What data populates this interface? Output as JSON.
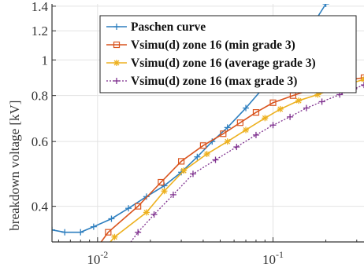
{
  "chart_data": {
    "type": "line",
    "title": "",
    "xlabel": "",
    "ylabel": "breakdown voltage [kV]",
    "xscale": "log",
    "yscale": "log",
    "xlim": [
      0.0055,
      0.33
    ],
    "ylim": [
      0.32,
      1.42
    ],
    "grid": true,
    "legend_position": "top-right",
    "x_ticks": [
      {
        "value": 0.01,
        "base": "10",
        "exp": "-2"
      },
      {
        "value": 0.1,
        "base": "10",
        "exp": "-1"
      }
    ],
    "y_ticks": [
      {
        "value": 0.4,
        "label": "0.4"
      },
      {
        "value": 0.6,
        "label": "0.6"
      },
      {
        "value": 0.8,
        "label": "0.8"
      },
      {
        "value": 1.0,
        "label": "1"
      },
      {
        "value": 1.2,
        "label": "1.2"
      },
      {
        "value": 1.4,
        "label": "1.4"
      }
    ],
    "series": [
      {
        "name": "Paschen curve",
        "color": "#2e7fbf",
        "marker": "plus",
        "dash": "",
        "points": [
          [
            0.0055,
            0.345
          ],
          [
            0.0065,
            0.34
          ],
          [
            0.008,
            0.34
          ],
          [
            0.0095,
            0.352
          ],
          [
            0.012,
            0.37
          ],
          [
            0.015,
            0.395
          ],
          [
            0.019,
            0.425
          ],
          [
            0.024,
            0.455
          ],
          [
            0.03,
            0.495
          ],
          [
            0.037,
            0.545
          ],
          [
            0.045,
            0.6
          ],
          [
            0.055,
            0.655
          ],
          [
            0.07,
            0.74
          ],
          [
            0.09,
            0.85
          ],
          [
            0.12,
            1.0
          ],
          [
            0.16,
            1.2
          ],
          [
            0.2,
            1.42
          ]
        ]
      },
      {
        "name": "Vsimu(d) zone 16 (min grade 3)",
        "color": "#d9541e",
        "marker": "square",
        "dash": "",
        "points": [
          [
            0.0095,
            0.3
          ],
          [
            0.0115,
            0.34
          ],
          [
            0.017,
            0.4
          ],
          [
            0.023,
            0.465
          ],
          [
            0.03,
            0.53
          ],
          [
            0.04,
            0.585
          ],
          [
            0.052,
            0.63
          ],
          [
            0.065,
            0.675
          ],
          [
            0.08,
            0.72
          ],
          [
            0.1,
            0.765
          ],
          [
            0.13,
            0.8
          ],
          [
            0.17,
            0.835
          ],
          [
            0.21,
            0.86
          ],
          [
            0.26,
            0.88
          ],
          [
            0.33,
            0.895
          ]
        ]
      },
      {
        "name": "Vsimu(d)  zone 16 (average grade 3)",
        "color": "#edb120",
        "marker": "star",
        "dash": "",
        "points": [
          [
            0.0105,
            0.3
          ],
          [
            0.0125,
            0.33
          ],
          [
            0.019,
            0.385
          ],
          [
            0.024,
            0.44
          ],
          [
            0.031,
            0.5
          ],
          [
            0.042,
            0.555
          ],
          [
            0.055,
            0.6
          ],
          [
            0.07,
            0.645
          ],
          [
            0.09,
            0.695
          ],
          [
            0.11,
            0.735
          ],
          [
            0.14,
            0.775
          ],
          [
            0.18,
            0.805
          ],
          [
            0.23,
            0.84
          ],
          [
            0.28,
            0.865
          ],
          [
            0.33,
            0.885
          ]
        ]
      },
      {
        "name": "Vsimu(d) zone 16 (max grade 3)",
        "color": "#7e2f8e",
        "marker": "plus",
        "dash": "2,2",
        "points": [
          [
            0.014,
            0.3
          ],
          [
            0.017,
            0.34
          ],
          [
            0.021,
            0.38
          ],
          [
            0.027,
            0.43
          ],
          [
            0.035,
            0.49
          ],
          [
            0.047,
            0.535
          ],
          [
            0.062,
            0.58
          ],
          [
            0.08,
            0.625
          ],
          [
            0.1,
            0.665
          ],
          [
            0.125,
            0.7
          ],
          [
            0.155,
            0.74
          ],
          [
            0.19,
            0.77
          ],
          [
            0.24,
            0.805
          ],
          [
            0.29,
            0.835
          ],
          [
            0.33,
            0.855
          ]
        ]
      }
    ]
  }
}
